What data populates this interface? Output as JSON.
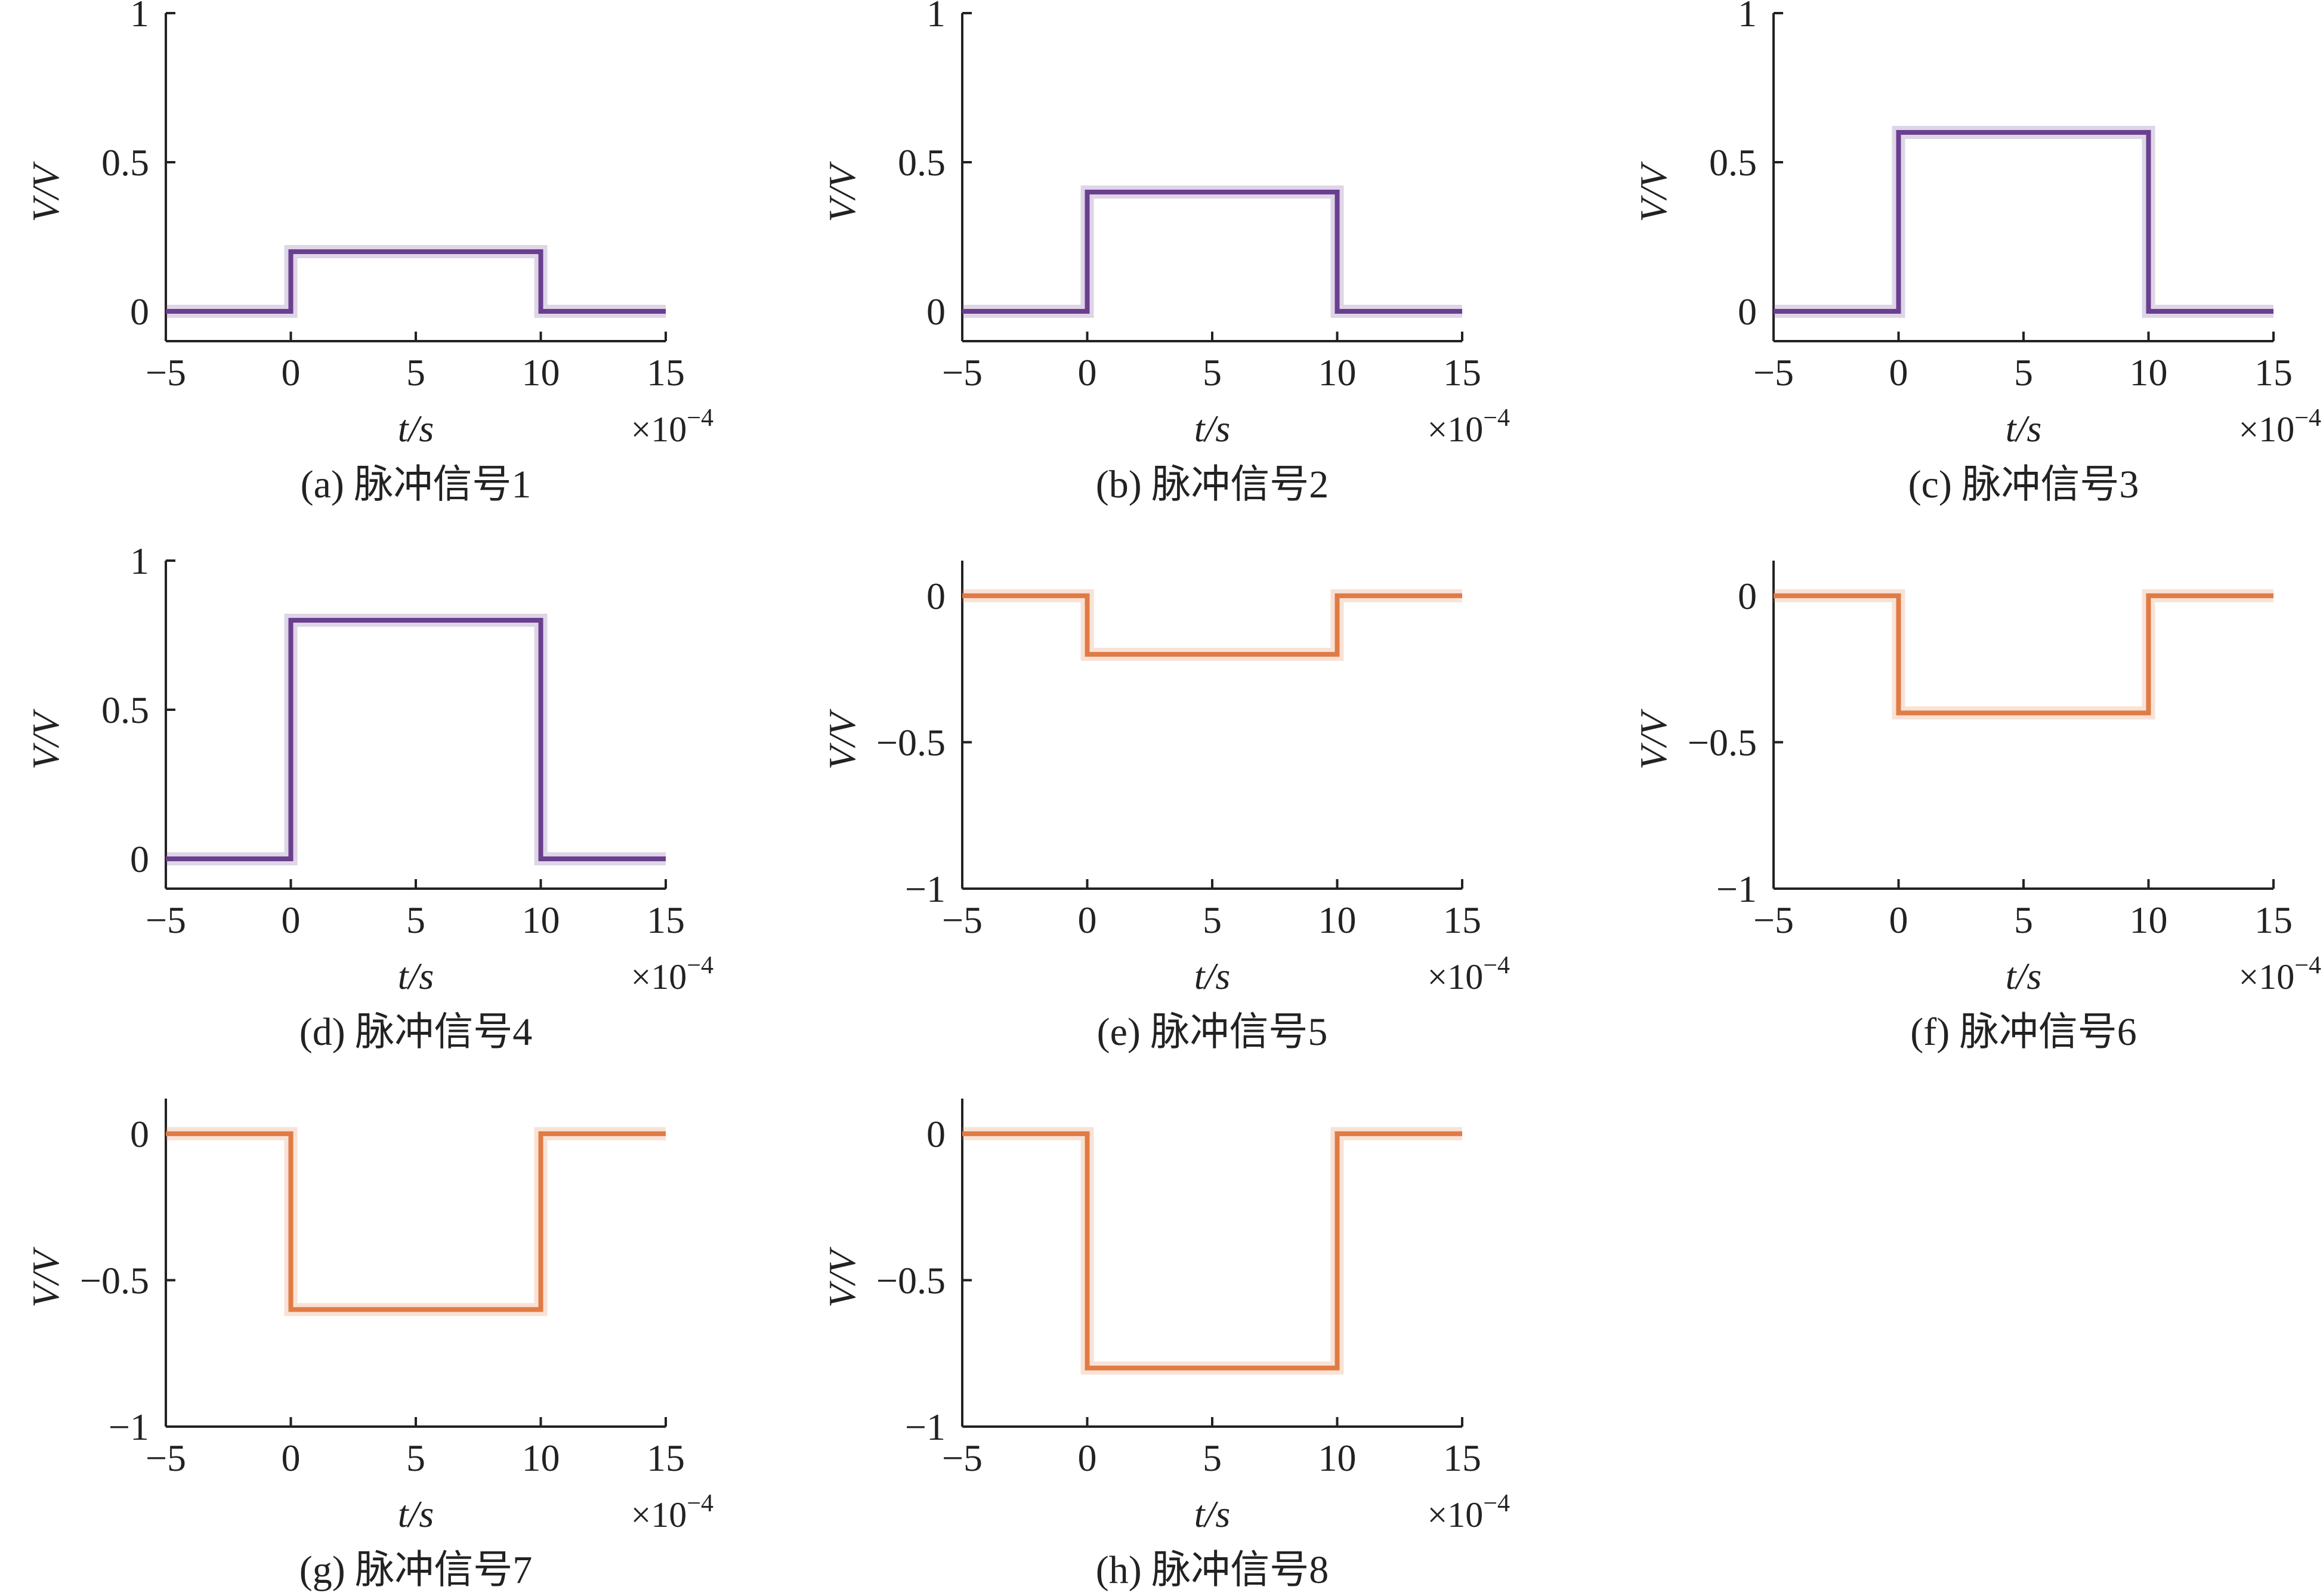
{
  "figure": {
    "x_multiplier": "×10",
    "x_multiplier_exp": "−4",
    "colors": {
      "positive": "#6a3f8f",
      "negative": "#e07b45",
      "axis": "#222222"
    }
  },
  "chart_data": [
    {
      "type": "line",
      "caption": "(a) 脉冲信号1",
      "xlabel": "t/s",
      "ylabel": "V/V",
      "x_ticks": [
        "−5",
        "0",
        "5",
        "10",
        "15"
      ],
      "y_ticks": [
        "0",
        "0.5",
        "1"
      ],
      "xlim": [
        -5,
        15
      ],
      "ylim": [
        -0.1,
        1
      ],
      "x_scale": "×10^-4",
      "series": [
        {
          "color": "#6a3f8f",
          "x": [
            -5,
            0,
            0,
            10,
            10,
            15
          ],
          "y": [
            0,
            0,
            0.2,
            0.2,
            0,
            0
          ]
        }
      ]
    },
    {
      "type": "line",
      "caption": "(b) 脉冲信号2",
      "xlabel": "t/s",
      "ylabel": "V/V",
      "x_ticks": [
        "−5",
        "0",
        "5",
        "10",
        "15"
      ],
      "y_ticks": [
        "0",
        "0.5",
        "1"
      ],
      "xlim": [
        -5,
        15
      ],
      "ylim": [
        -0.1,
        1
      ],
      "x_scale": "×10^-4",
      "series": [
        {
          "color": "#6a3f8f",
          "x": [
            -5,
            0,
            0,
            10,
            10,
            15
          ],
          "y": [
            0,
            0,
            0.4,
            0.4,
            0,
            0
          ]
        }
      ]
    },
    {
      "type": "line",
      "caption": "(c) 脉冲信号3",
      "xlabel": "t/s",
      "ylabel": "V/V",
      "x_ticks": [
        "−5",
        "0",
        "5",
        "10",
        "15"
      ],
      "y_ticks": [
        "0",
        "0.5",
        "1"
      ],
      "xlim": [
        -5,
        15
      ],
      "ylim": [
        -0.1,
        1
      ],
      "x_scale": "×10^-4",
      "series": [
        {
          "color": "#6a3f8f",
          "x": [
            -5,
            0,
            0,
            10,
            10,
            15
          ],
          "y": [
            0,
            0,
            0.6,
            0.6,
            0,
            0
          ]
        }
      ]
    },
    {
      "type": "line",
      "caption": "(d) 脉冲信号4",
      "xlabel": "t/s",
      "ylabel": "V/V",
      "x_ticks": [
        "−5",
        "0",
        "5",
        "10",
        "15"
      ],
      "y_ticks": [
        "0",
        "0.5",
        "1"
      ],
      "xlim": [
        -5,
        15
      ],
      "ylim": [
        -0.1,
        1
      ],
      "x_scale": "×10^-4",
      "series": [
        {
          "color": "#6a3f8f",
          "x": [
            -5,
            0,
            0,
            10,
            10,
            15
          ],
          "y": [
            0,
            0,
            0.8,
            0.8,
            0,
            0
          ]
        }
      ]
    },
    {
      "type": "line",
      "caption": "(e) 脉冲信号5",
      "xlabel": "t/s",
      "ylabel": "V/V",
      "x_ticks": [
        "−5",
        "0",
        "5",
        "10",
        "15"
      ],
      "y_ticks": [
        "−1",
        "−0.5",
        "0"
      ],
      "xlim": [
        -5,
        15
      ],
      "ylim": [
        -1,
        0.12
      ],
      "x_scale": "×10^-4",
      "series": [
        {
          "color": "#e07b45",
          "x": [
            -5,
            0,
            0,
            10,
            10,
            15
          ],
          "y": [
            0,
            0,
            -0.2,
            -0.2,
            0,
            0
          ]
        }
      ]
    },
    {
      "type": "line",
      "caption": "(f) 脉冲信号6",
      "xlabel": "t/s",
      "ylabel": "V/V",
      "x_ticks": [
        "−5",
        "0",
        "5",
        "10",
        "15"
      ],
      "y_ticks": [
        "−1",
        "−0.5",
        "0"
      ],
      "xlim": [
        -5,
        15
      ],
      "ylim": [
        -1,
        0.12
      ],
      "x_scale": "×10^-4",
      "series": [
        {
          "color": "#e07b45",
          "x": [
            -5,
            0,
            0,
            10,
            10,
            15
          ],
          "y": [
            0,
            0,
            -0.4,
            -0.4,
            0,
            0
          ]
        }
      ]
    },
    {
      "type": "line",
      "caption": "(g) 脉冲信号7",
      "xlabel": "t/s",
      "ylabel": "V/V",
      "x_ticks": [
        "−5",
        "0",
        "5",
        "10",
        "15"
      ],
      "y_ticks": [
        "−1",
        "−0.5",
        "0"
      ],
      "xlim": [
        -5,
        15
      ],
      "ylim": [
        -1,
        0.12
      ],
      "x_scale": "×10^-4",
      "series": [
        {
          "color": "#e07b45",
          "x": [
            -5,
            0,
            0,
            10,
            10,
            15
          ],
          "y": [
            0,
            0,
            -0.6,
            -0.6,
            0,
            0
          ]
        }
      ]
    },
    {
      "type": "line",
      "caption": "(h) 脉冲信号8",
      "xlabel": "t/s",
      "ylabel": "V/V",
      "x_ticks": [
        "−5",
        "0",
        "5",
        "10",
        "15"
      ],
      "y_ticks": [
        "−1",
        "−0.5",
        "0"
      ],
      "xlim": [
        -5,
        15
      ],
      "ylim": [
        -1,
        0.12
      ],
      "x_scale": "×10^-4",
      "series": [
        {
          "color": "#e07b45",
          "x": [
            -5,
            0,
            0,
            10,
            10,
            15
          ],
          "y": [
            0,
            0,
            -0.8,
            -0.8,
            0,
            0
          ]
        }
      ]
    }
  ]
}
